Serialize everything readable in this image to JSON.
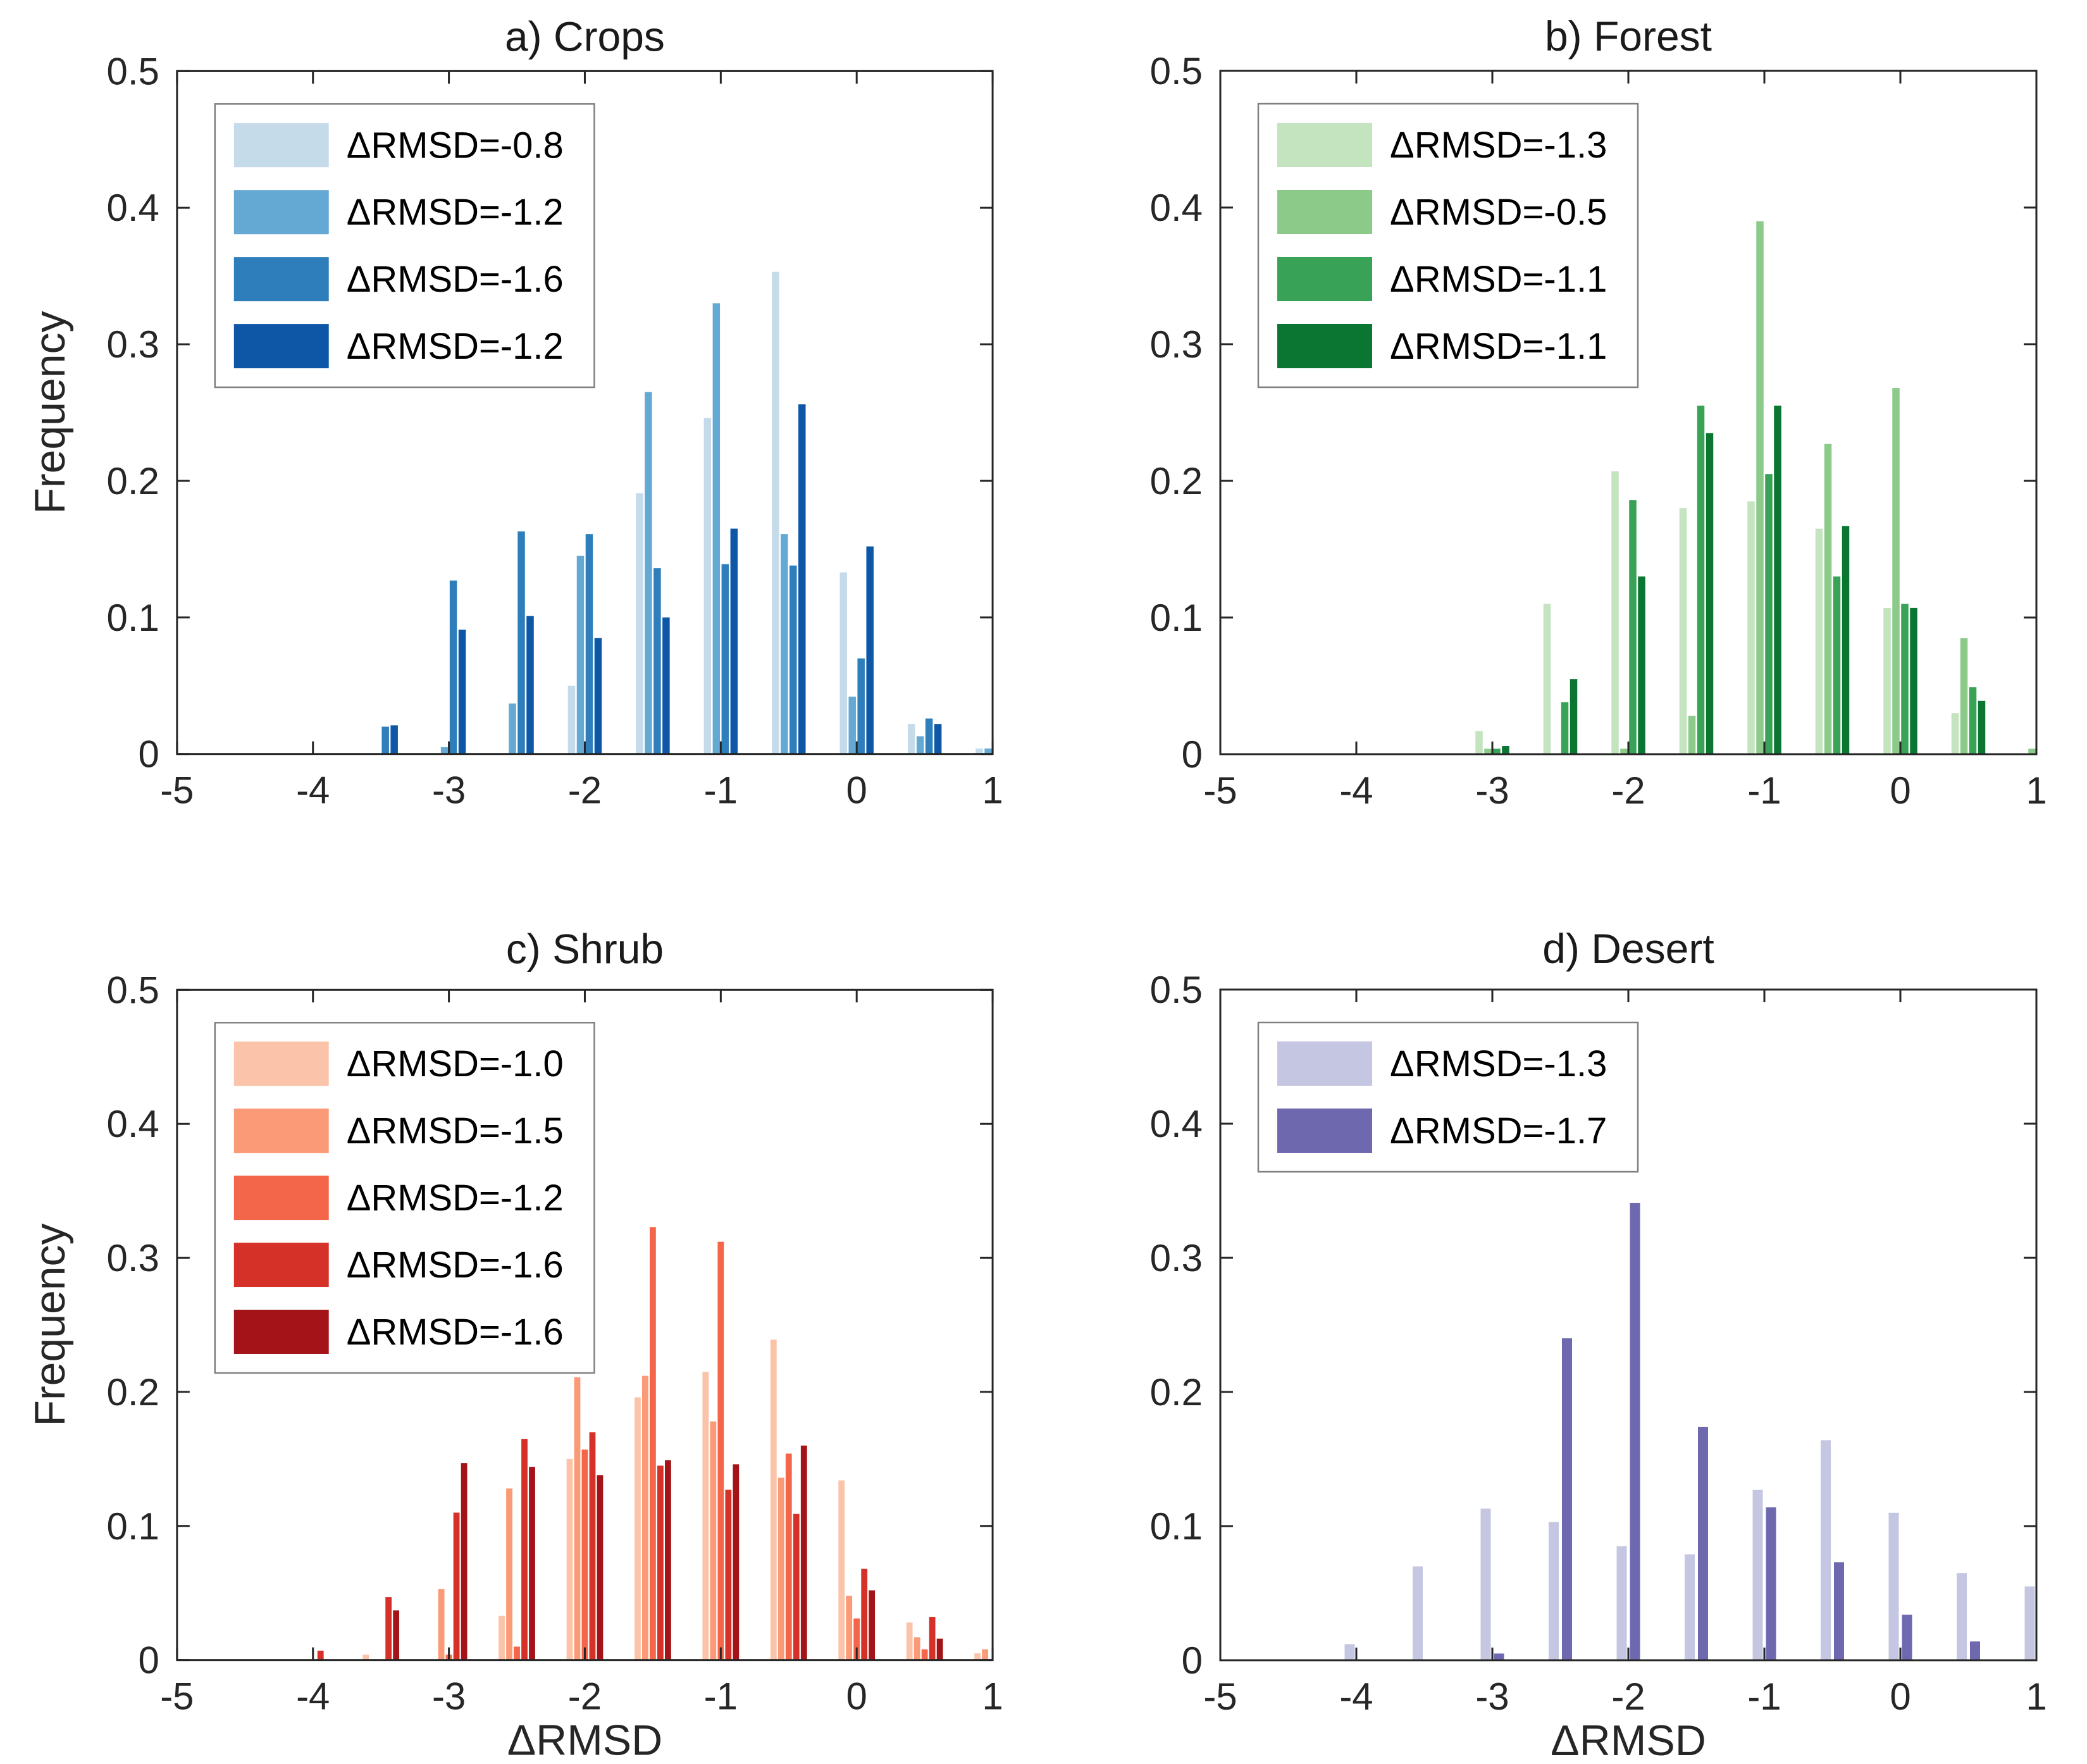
{
  "figure": {
    "background": "#ffffff",
    "axis_color": "#262626",
    "text_color": "#262626",
    "title_color": "#1a1a1a",
    "legend_border_color": "#808080",
    "legend_background": "#ffffff"
  },
  "chart_data": [
    {
      "type": "bar",
      "panel_id": "a",
      "title": "a) Crops",
      "ylabel": "Frequency",
      "xlabel": null,
      "xlim": [
        -5,
        1
      ],
      "ylim": [
        0,
        0.5
      ],
      "x_ticks": [
        "-5",
        "-4",
        "-3",
        "-2",
        "-1",
        "0",
        "1"
      ],
      "y_ticks": [
        "0",
        "0.1",
        "0.2",
        "0.3",
        "0.4",
        "0.5"
      ],
      "grid": false,
      "legend_position": "top-left",
      "bin_width": 0.5,
      "categories": [
        -3.5,
        -3,
        -2.5,
        -2,
        -1.5,
        -1,
        -0.5,
        0,
        0.5,
        1
      ],
      "series": [
        {
          "name": "ΔRMSD=-0.8",
          "color": "#c6dbea",
          "values": [
            0,
            0,
            0,
            0.05,
            0.191,
            0.246,
            0.353,
            0.133,
            0.022,
            0.004
          ]
        },
        {
          "name": "ΔRMSD=-1.2",
          "color": "#64a9d3",
          "values": [
            0,
            0.005,
            0.037,
            0.145,
            0.265,
            0.33,
            0.161,
            0.042,
            0.013,
            0.004
          ]
        },
        {
          "name": "ΔRMSD=-1.6",
          "color": "#2e7ebc",
          "values": [
            0.02,
            0.127,
            0.163,
            0.161,
            0.136,
            0.139,
            0.138,
            0.07,
            0.026,
            0
          ]
        },
        {
          "name": "ΔRMSD=-1.2",
          "color": "#0d57a6",
          "values": [
            0.021,
            0.091,
            0.101,
            0.085,
            0.1,
            0.165,
            0.256,
            0.152,
            0.022,
            0
          ]
        }
      ]
    },
    {
      "type": "bar",
      "panel_id": "b",
      "title": "b) Forest",
      "ylabel": null,
      "xlabel": null,
      "xlim": [
        -5,
        1
      ],
      "ylim": [
        0,
        0.5
      ],
      "x_ticks": [
        "-5",
        "-4",
        "-3",
        "-2",
        "-1",
        "0",
        "1"
      ],
      "y_ticks": [
        "0",
        "0.1",
        "0.2",
        "0.3",
        "0.4",
        "0.5"
      ],
      "grid": false,
      "legend_position": "top-left",
      "bin_width": 0.5,
      "categories": [
        -3,
        -2.5,
        -2,
        -1.5,
        -1,
        -0.5,
        0,
        0.5,
        1
      ],
      "series": [
        {
          "name": "ΔRMSD=-1.3",
          "color": "#c4e3bf",
          "values": [
            0.017,
            0.11,
            0.207,
            0.18,
            0.185,
            0.165,
            0.107,
            0.03,
            0
          ]
        },
        {
          "name": "ΔRMSD=-0.5",
          "color": "#8cca8a",
          "values": [
            0.004,
            0,
            0.004,
            0.028,
            0.39,
            0.227,
            0.268,
            0.085,
            0.004
          ]
        },
        {
          "name": "ΔRMSD=-1.1",
          "color": "#38a356",
          "values": [
            0.004,
            0.038,
            0.186,
            0.255,
            0.205,
            0.13,
            0.11,
            0.049,
            0
          ]
        },
        {
          "name": "ΔRMSD=-1.1",
          "color": "#0b7532",
          "values": [
            0.006,
            0.055,
            0.13,
            0.235,
            0.255,
            0.167,
            0.107,
            0.039,
            0
          ]
        }
      ]
    },
    {
      "type": "bar",
      "panel_id": "c",
      "title": "c) Shrub",
      "ylabel": "Frequency",
      "xlabel": "ΔRMSD",
      "xlim": [
        -5,
        1
      ],
      "ylim": [
        0,
        0.5
      ],
      "x_ticks": [
        "-5",
        "-4",
        "-3",
        "-2",
        "-1",
        "0",
        "1"
      ],
      "y_ticks": [
        "0",
        "0.1",
        "0.2",
        "0.3",
        "0.4",
        "0.5"
      ],
      "grid": false,
      "legend_position": "top-left",
      "bin_width": 0.5,
      "categories": [
        -4,
        -3.5,
        -3,
        -2.5,
        -2,
        -1.5,
        -1,
        -0.5,
        0,
        0.5,
        1
      ],
      "series": [
        {
          "name": "ΔRMSD=-1.0",
          "color": "#fbc3a9",
          "values": [
            0,
            0.004,
            0,
            0.033,
            0.15,
            0.196,
            0.215,
            0.239,
            0.134,
            0.028,
            0.005
          ]
        },
        {
          "name": "ΔRMSD=-1.5",
          "color": "#fa9a76",
          "values": [
            0,
            0,
            0.053,
            0.128,
            0.211,
            0.212,
            0.178,
            0.136,
            0.048,
            0.017,
            0.008
          ]
        },
        {
          "name": "ΔRMSD=-1.2",
          "color": "#f4664a",
          "values": [
            0,
            0,
            0.004,
            0.01,
            0.157,
            0.323,
            0.312,
            0.154,
            0.031,
            0.008,
            0
          ]
        },
        {
          "name": "ΔRMSD=-1.6",
          "color": "#d63129",
          "values": [
            0.007,
            0.047,
            0.11,
            0.165,
            0.17,
            0.145,
            0.127,
            0.109,
            0.068,
            0.032,
            0
          ]
        },
        {
          "name": "ΔRMSD=-1.6",
          "color": "#a31317",
          "values": [
            0,
            0.037,
            0.147,
            0.144,
            0.138,
            0.149,
            0.146,
            0.16,
            0.052,
            0.016,
            0
          ]
        }
      ]
    },
    {
      "type": "bar",
      "panel_id": "d",
      "title": "d) Desert",
      "ylabel": null,
      "xlabel": "ΔRMSD",
      "xlim": [
        -5,
        1
      ],
      "ylim": [
        0,
        0.5
      ],
      "x_ticks": [
        "-5",
        "-4",
        "-3",
        "-2",
        "-1",
        "0",
        "1"
      ],
      "y_ticks": [
        "0",
        "0.1",
        "0.2",
        "0.3",
        "0.4",
        "0.5"
      ],
      "grid": false,
      "legend_position": "top-left",
      "bin_width": 0.5,
      "categories": [
        -4,
        -3.5,
        -3,
        -2.5,
        -2,
        -1.5,
        -1,
        -0.5,
        0,
        0.5,
        1
      ],
      "series": [
        {
          "name": "ΔRMSD=-1.3",
          "color": "#c5c6e2",
          "values": [
            0.012,
            0.07,
            0.113,
            0.103,
            0.085,
            0.079,
            0.127,
            0.164,
            0.11,
            0.065,
            0.055
          ]
        },
        {
          "name": "ΔRMSD=-1.7",
          "color": "#6e68ae",
          "values": [
            0,
            0,
            0.005,
            0.24,
            0.341,
            0.174,
            0.114,
            0.073,
            0.034,
            0.014,
            0
          ]
        }
      ]
    }
  ]
}
